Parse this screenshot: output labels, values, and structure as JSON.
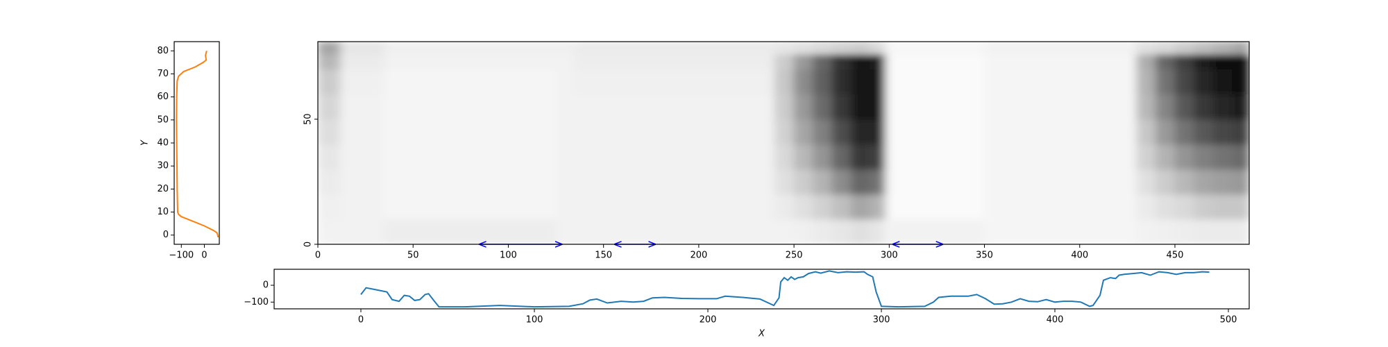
{
  "chart_data": [
    {
      "type": "line",
      "ylabel": "Y",
      "xlim": [
        -131,
        65
      ],
      "ylim": [
        -4,
        84
      ],
      "xticks": [
        {
          "value": -100,
          "label": "−100"
        },
        0
      ],
      "yticks": [
        0,
        10,
        20,
        30,
        40,
        50,
        60,
        70,
        80
      ],
      "series": [
        {
          "color": "#ff7f0e",
          "x": [
            10,
            5,
            8,
            -5,
            -40,
            -90,
            -112,
            -118,
            -120,
            -121,
            -120,
            -119,
            -118,
            -116,
            -112,
            -100,
            -50,
            0,
            40,
            55,
            58,
            60
          ],
          "y": [
            80,
            78,
            76,
            75,
            73,
            71,
            69,
            67,
            60,
            50,
            40,
            30,
            20,
            10,
            9,
            8,
            6,
            4,
            2,
            1,
            0,
            -1
          ]
        }
      ]
    },
    {
      "type": "heatmap",
      "xlim": [
        0,
        489
      ],
      "ylim": [
        0,
        81
      ],
      "xticks": [
        0,
        50,
        100,
        150,
        200,
        250,
        300,
        350,
        400,
        450
      ],
      "yticks": [
        0,
        50
      ],
      "x_edges": [
        0,
        12,
        35,
        125,
        135,
        240,
        250,
        260,
        270,
        280,
        290,
        298,
        300,
        350,
        430,
        440,
        450,
        460,
        470,
        480,
        489
      ],
      "y_edges": [
        0,
        10,
        20,
        30,
        40,
        50,
        60,
        70,
        76,
        81
      ],
      "z": [
        [
          0.05,
          0.05,
          0.07,
          0.05,
          0.05,
          0.05,
          0.06,
          0.08,
          0.1,
          0.12,
          0.1,
          0.03,
          0.05,
          0.04,
          0.05,
          0.06,
          0.07,
          0.08,
          0.08,
          0.08
        ],
        [
          0.06,
          0.05,
          0.04,
          0.05,
          0.05,
          0.08,
          0.12,
          0.18,
          0.25,
          0.35,
          0.3,
          0.03,
          0.02,
          0.04,
          0.08,
          0.12,
          0.15,
          0.2,
          0.22,
          0.22
        ],
        [
          0.08,
          0.05,
          0.04,
          0.05,
          0.05,
          0.12,
          0.2,
          0.3,
          0.45,
          0.6,
          0.55,
          0.03,
          0.02,
          0.04,
          0.12,
          0.2,
          0.28,
          0.35,
          0.38,
          0.4
        ],
        [
          0.1,
          0.05,
          0.04,
          0.05,
          0.05,
          0.15,
          0.28,
          0.42,
          0.6,
          0.78,
          0.75,
          0.03,
          0.02,
          0.04,
          0.18,
          0.3,
          0.42,
          0.5,
          0.55,
          0.58
        ],
        [
          0.13,
          0.05,
          0.04,
          0.05,
          0.05,
          0.18,
          0.35,
          0.5,
          0.7,
          0.85,
          0.85,
          0.03,
          0.02,
          0.04,
          0.22,
          0.4,
          0.55,
          0.65,
          0.72,
          0.75
        ],
        [
          0.16,
          0.05,
          0.04,
          0.05,
          0.05,
          0.2,
          0.4,
          0.58,
          0.78,
          0.9,
          0.9,
          0.03,
          0.02,
          0.04,
          0.28,
          0.48,
          0.65,
          0.78,
          0.85,
          0.88
        ],
        [
          0.2,
          0.06,
          0.04,
          0.05,
          0.06,
          0.22,
          0.45,
          0.62,
          0.82,
          0.92,
          0.92,
          0.03,
          0.02,
          0.04,
          0.3,
          0.55,
          0.72,
          0.85,
          0.92,
          0.95
        ],
        [
          0.28,
          0.08,
          0.05,
          0.05,
          0.07,
          0.2,
          0.4,
          0.6,
          0.8,
          0.9,
          0.88,
          0.03,
          0.02,
          0.04,
          0.32,
          0.6,
          0.75,
          0.88,
          0.95,
          0.97
        ],
        [
          0.35,
          0.1,
          0.06,
          0.06,
          0.08,
          0.1,
          0.12,
          0.15,
          0.18,
          0.2,
          0.15,
          0.03,
          0.03,
          0.05,
          0.12,
          0.15,
          0.2,
          0.25,
          0.3,
          0.35
        ]
      ],
      "spans": {
        "color": "#0000ff",
        "ranges": [
          [
            85,
            128
          ],
          [
            156,
            177
          ],
          [
            302,
            328
          ]
        ]
      }
    },
    {
      "type": "line",
      "xlabel": "X",
      "xlim": [
        -50,
        512
      ],
      "ylim": [
        -140,
        95
      ],
      "xticks": [
        0,
        100,
        200,
        300,
        400,
        500
      ],
      "yticks": [
        {
          "value": -100,
          "label": "−100"
        },
        0
      ],
      "series": [
        {
          "color": "#1f77b4",
          "x": [
            0,
            3,
            8,
            15,
            18,
            22,
            25,
            28,
            31,
            34,
            37,
            39,
            42,
            45,
            60,
            80,
            100,
            110,
            120,
            128,
            132,
            136,
            142,
            150,
            157,
            163,
            168,
            175,
            185,
            195,
            205,
            210,
            220,
            230,
            238,
            241,
            242,
            244,
            246,
            248,
            250,
            252,
            255,
            258,
            262,
            265,
            270,
            275,
            280,
            285,
            290,
            292,
            295,
            297,
            300,
            310,
            325,
            330,
            333,
            340,
            350,
            355,
            360,
            365,
            370,
            375,
            380,
            385,
            390,
            395,
            400,
            405,
            410,
            415,
            420,
            422,
            426,
            428,
            432,
            435,
            437,
            440,
            445,
            450,
            455,
            460,
            465,
            470,
            475,
            480,
            485,
            489
          ],
          "y": [
            -55,
            -15,
            -25,
            -40,
            -85,
            -95,
            -60,
            -65,
            -90,
            -85,
            -55,
            -50,
            -90,
            -128,
            -128,
            -120,
            -128,
            -127,
            -125,
            -110,
            -88,
            -82,
            -105,
            -95,
            -100,
            -95,
            -75,
            -72,
            -78,
            -80,
            -80,
            -65,
            -72,
            -82,
            -120,
            -75,
            20,
            45,
            30,
            50,
            35,
            45,
            50,
            70,
            80,
            72,
            85,
            75,
            80,
            78,
            80,
            65,
            50,
            -40,
            -125,
            -128,
            -125,
            -100,
            -72,
            -65,
            -65,
            -55,
            -80,
            -112,
            -110,
            -100,
            -80,
            -95,
            -98,
            -85,
            -100,
            -95,
            -95,
            -100,
            -125,
            -120,
            -60,
            30,
            45,
            40,
            60,
            65,
            70,
            75,
            60,
            80,
            75,
            65,
            75,
            75,
            80,
            78
          ]
        }
      ]
    }
  ]
}
